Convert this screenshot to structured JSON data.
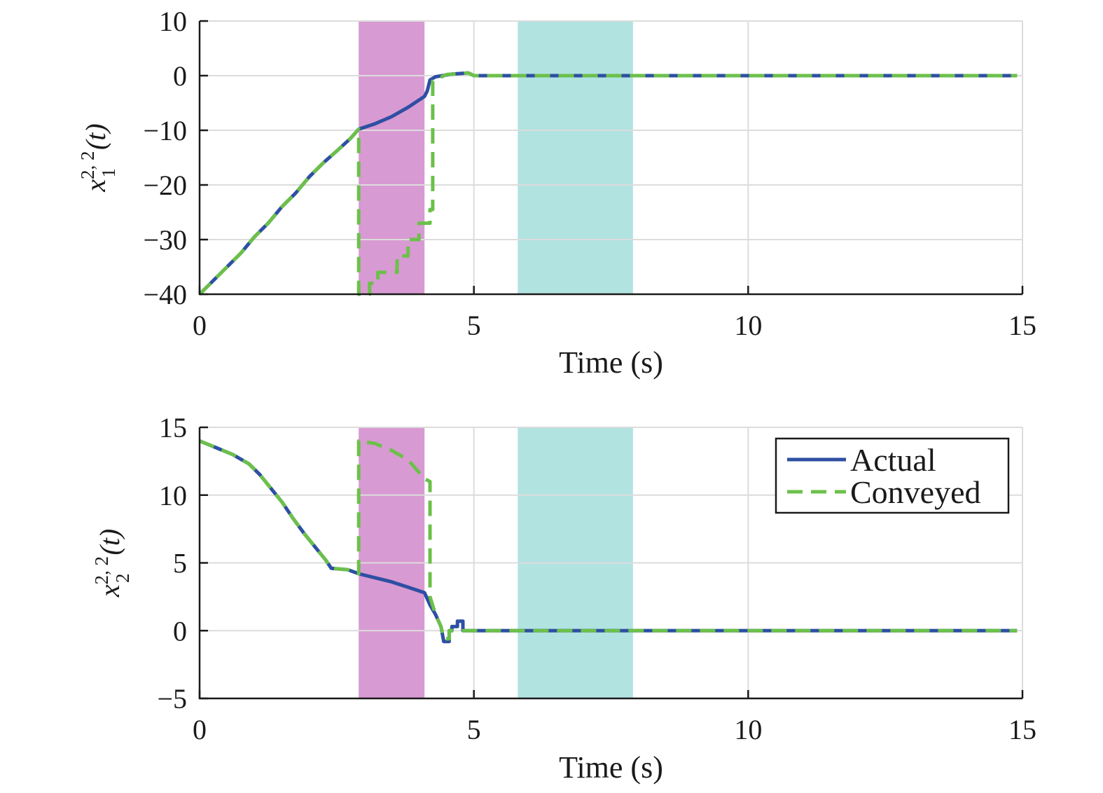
{
  "chart_data": [
    {
      "type": "line",
      "ylabel": {
        "base": "x",
        "superscript": "2, 2",
        "subscript": "1",
        "arg": "(t)"
      },
      "xlabel": "Time (s)",
      "xlim": [
        0,
        15
      ],
      "ylim": [
        -40,
        10
      ],
      "xticks": [
        "0",
        "5",
        "10",
        "15"
      ],
      "yticks": [
        "10",
        "0",
        "−10",
        "−20",
        "−30",
        "−40"
      ],
      "ytick_values": [
        10,
        0,
        -10,
        -20,
        -30,
        -40
      ],
      "xtick_values": [
        0,
        5,
        10,
        15
      ],
      "grid": true,
      "shaded_regions": [
        {
          "x": [
            2.9,
            4.1
          ],
          "color": "#d89ad2"
        },
        {
          "x": [
            5.8,
            7.9
          ],
          "color": "#b1e3e1"
        }
      ],
      "series": [
        {
          "name": "Actual",
          "color": "#2e4fa3",
          "dash": "solid",
          "points": [
            [
              0,
              -40
            ],
            [
              0.25,
              -37.5
            ],
            [
              0.5,
              -35
            ],
            [
              0.75,
              -32.5
            ],
            [
              1.0,
              -29.5
            ],
            [
              1.25,
              -27
            ],
            [
              1.5,
              -24
            ],
            [
              1.75,
              -21.5
            ],
            [
              2.0,
              -18.5
            ],
            [
              2.25,
              -16
            ],
            [
              2.5,
              -13.8
            ],
            [
              2.75,
              -11.5
            ],
            [
              2.9,
              -9.8
            ],
            [
              3.2,
              -8.8
            ],
            [
              3.5,
              -7.5
            ],
            [
              3.8,
              -5.8
            ],
            [
              4.1,
              -3.8
            ],
            [
              4.15,
              -2.8
            ],
            [
              4.2,
              -0.8
            ],
            [
              4.3,
              -0.2
            ],
            [
              4.6,
              0.3
            ],
            [
              4.9,
              0.5
            ],
            [
              5.0,
              0
            ],
            [
              7.5,
              0
            ],
            [
              10,
              0
            ],
            [
              14.9,
              0
            ]
          ]
        },
        {
          "name": "Conveyed",
          "color": "#6cc04a",
          "dash": "dashed",
          "points": [
            [
              0,
              -40
            ],
            [
              0.25,
              -37.5
            ],
            [
              0.5,
              -35
            ],
            [
              0.75,
              -32.5
            ],
            [
              1.0,
              -29.5
            ],
            [
              1.25,
              -27
            ],
            [
              1.5,
              -24
            ],
            [
              1.75,
              -21.5
            ],
            [
              2.0,
              -18.5
            ],
            [
              2.25,
              -16
            ],
            [
              2.5,
              -13.8
            ],
            [
              2.75,
              -11.5
            ],
            [
              2.9,
              -9.8
            ],
            [
              2.9,
              -40
            ],
            [
              3.1,
              -40
            ],
            [
              3.1,
              -38
            ],
            [
              3.25,
              -38
            ],
            [
              3.25,
              -36
            ],
            [
              3.6,
              -36
            ],
            [
              3.6,
              -33
            ],
            [
              3.8,
              -33
            ],
            [
              3.8,
              -30
            ],
            [
              4.0,
              -30
            ],
            [
              4.0,
              -27
            ],
            [
              4.2,
              -27
            ],
            [
              4.2,
              -24.5
            ],
            [
              4.25,
              -24.5
            ],
            [
              4.25,
              -1
            ],
            [
              4.5,
              0.2
            ],
            [
              4.9,
              0.5
            ],
            [
              5.0,
              0
            ],
            [
              14.9,
              0
            ]
          ]
        }
      ]
    },
    {
      "type": "line",
      "ylabel": {
        "base": "x",
        "superscript": "2, 2",
        "subscript": "2",
        "arg": "(t)"
      },
      "xlabel": "Time (s)",
      "xlim": [
        0,
        15
      ],
      "ylim": [
        -5,
        15
      ],
      "xticks": [
        "0",
        "5",
        "10",
        "15"
      ],
      "yticks": [
        "15",
        "10",
        "5",
        "0",
        "−5"
      ],
      "ytick_values": [
        15,
        10,
        5,
        0,
        -5
      ],
      "xtick_values": [
        0,
        5,
        10,
        15
      ],
      "grid": true,
      "legend": {
        "position": "top-right",
        "entries": [
          "Actual",
          "Conveyed"
        ]
      },
      "shaded_regions": [
        {
          "x": [
            2.9,
            4.1
          ],
          "color": "#d89ad2"
        },
        {
          "x": [
            5.8,
            7.9
          ],
          "color": "#b1e3e1"
        }
      ],
      "series": [
        {
          "name": "Actual",
          "color": "#2e4fa3",
          "dash": "solid",
          "points": [
            [
              0,
              14
            ],
            [
              0.3,
              13.5
            ],
            [
              0.6,
              13
            ],
            [
              0.9,
              12.3
            ],
            [
              1.1,
              11.5
            ],
            [
              1.3,
              10.5
            ],
            [
              1.5,
              9.5
            ],
            [
              1.7,
              8.3
            ],
            [
              1.9,
              7.2
            ],
            [
              2.1,
              6.2
            ],
            [
              2.3,
              5.2
            ],
            [
              2.4,
              4.6
            ],
            [
              2.7,
              4.5
            ],
            [
              2.9,
              4.2
            ],
            [
              3.2,
              3.9
            ],
            [
              3.5,
              3.6
            ],
            [
              3.8,
              3.2
            ],
            [
              4.1,
              2.8
            ],
            [
              4.2,
              1.9
            ],
            [
              4.3,
              1.2
            ],
            [
              4.4,
              0.3
            ],
            [
              4.45,
              -0.8
            ],
            [
              4.55,
              -0.8
            ],
            [
              4.55,
              0
            ],
            [
              4.6,
              0
            ],
            [
              4.6,
              0.3
            ],
            [
              4.7,
              0.3
            ],
            [
              4.7,
              0.7
            ],
            [
              4.8,
              0.7
            ],
            [
              4.8,
              0
            ],
            [
              7.5,
              0
            ],
            [
              10,
              0
            ],
            [
              14.9,
              0
            ]
          ]
        },
        {
          "name": "Conveyed",
          "color": "#6cc04a",
          "dash": "dashed",
          "points": [
            [
              0,
              14
            ],
            [
              0.3,
              13.5
            ],
            [
              0.6,
              13
            ],
            [
              0.9,
              12.3
            ],
            [
              1.1,
              11.5
            ],
            [
              1.3,
              10.5
            ],
            [
              1.5,
              9.5
            ],
            [
              1.7,
              8.3
            ],
            [
              1.9,
              7.2
            ],
            [
              2.1,
              6.2
            ],
            [
              2.3,
              5.2
            ],
            [
              2.4,
              4.6
            ],
            [
              2.7,
              4.5
            ],
            [
              2.9,
              4.2
            ],
            [
              2.9,
              14
            ],
            [
              3.2,
              13.8
            ],
            [
              3.5,
              13.3
            ],
            [
              3.8,
              12.6
            ],
            [
              4.1,
              11.2
            ],
            [
              4.2,
              11
            ],
            [
              4.2,
              2.5
            ],
            [
              4.3,
              1.2
            ],
            [
              4.4,
              0.3
            ],
            [
              4.45,
              -0.6
            ],
            [
              4.55,
              -0.6
            ],
            [
              4.55,
              0
            ],
            [
              4.8,
              0
            ],
            [
              14.9,
              0
            ]
          ]
        }
      ]
    }
  ]
}
